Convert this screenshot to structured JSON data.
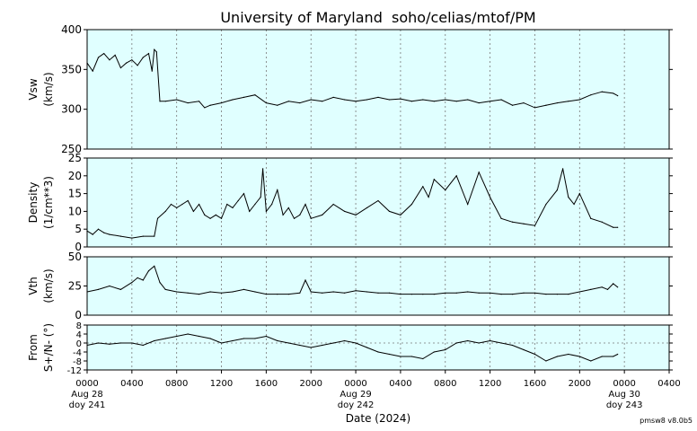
{
  "title": "University of Maryland  soho/celias/mtof/PM",
  "xlabel": "Date (2024)",
  "footer": "pmsw8 v8.0b5",
  "x_ticks": [
    "0000",
    "0400",
    "0800",
    "1200",
    "1600",
    "2000",
    "0000",
    "0400",
    "0800",
    "1200",
    "1600",
    "2000",
    "0000",
    "0400"
  ],
  "date_labels": [
    {
      "hour": 0,
      "line1": "Aug 28",
      "line2": "doy 241"
    },
    {
      "hour": 24,
      "line1": "Aug 29",
      "line2": "doy 242"
    },
    {
      "hour": 48,
      "line1": "Aug 30",
      "line2": "doy 243"
    }
  ],
  "colors": {
    "panel_bg": "#e0ffff",
    "trace": "#000000",
    "grid": "#777777"
  },
  "chart_data": [
    {
      "type": "line",
      "ylabel": "Vsw",
      "yunit": "(km/s)",
      "xlim": [
        0,
        52
      ],
      "ylim": [
        250,
        400
      ],
      "yticks": [
        250,
        300,
        350,
        400
      ],
      "series": [
        {
          "x": [
            0,
            0.5,
            1,
            1.5,
            2,
            2.5,
            3,
            3.5,
            4,
            4.5,
            5,
            5.5,
            5.8,
            6,
            6.2,
            6.5,
            7,
            8,
            9,
            10,
            10.5,
            11,
            12,
            13,
            14,
            15,
            16,
            17,
            18,
            19,
            20,
            21,
            22,
            23,
            24,
            25,
            26,
            27,
            28,
            29,
            30,
            31,
            32,
            33,
            34,
            35,
            36,
            37,
            38,
            39,
            40,
            41,
            42,
            43,
            44,
            45,
            46,
            47,
            47.4
          ],
          "y": [
            358,
            348,
            365,
            370,
            362,
            368,
            352,
            358,
            362,
            355,
            365,
            370,
            348,
            375,
            372,
            310,
            310,
            312,
            308,
            310,
            302,
            305,
            308,
            312,
            315,
            318,
            308,
            305,
            310,
            308,
            312,
            310,
            315,
            312,
            310,
            312,
            315,
            312,
            313,
            310,
            312,
            310,
            312,
            310,
            312,
            308,
            310,
            312,
            305,
            308,
            302,
            305,
            308,
            310,
            312,
            318,
            322,
            320,
            317
          ]
        }
      ]
    },
    {
      "type": "line",
      "ylabel": "Density",
      "yunit": "(1/cm**3)",
      "xlim": [
        0,
        52
      ],
      "ylim": [
        0,
        25
      ],
      "yticks": [
        0,
        5,
        10,
        15,
        20,
        25
      ],
      "series": [
        {
          "x": [
            0,
            0.5,
            1,
            1.5,
            2,
            3,
            4,
            5,
            6,
            6.3,
            7,
            7.5,
            8,
            8.5,
            9,
            9.5,
            10,
            10.5,
            11,
            11.5,
            12,
            12.5,
            13,
            13.5,
            14,
            14.5,
            15,
            15.5,
            15.7,
            16,
            16.5,
            17,
            17.5,
            18,
            18.5,
            19,
            19.5,
            20,
            21,
            22,
            23,
            24,
            25,
            26,
            27,
            28,
            29,
            30,
            30.5,
            31,
            32,
            33,
            34,
            35,
            36,
            37,
            38,
            39,
            40,
            41,
            42,
            42.5,
            43,
            43.5,
            44,
            45,
            46,
            47,
            47.4
          ],
          "y": [
            4.5,
            3.5,
            5,
            4,
            3.5,
            3,
            2.5,
            3,
            3,
            8,
            10,
            12,
            11,
            12,
            13,
            10,
            12,
            9,
            8,
            9,
            8,
            12,
            11,
            13,
            15,
            10,
            12,
            14,
            22,
            10,
            12,
            16,
            9,
            11,
            8,
            9,
            12,
            8,
            9,
            12,
            10,
            9,
            11,
            13,
            10,
            9,
            12,
            17,
            14,
            19,
            16,
            20,
            12,
            21,
            14,
            8,
            7,
            6.5,
            6,
            12,
            16,
            22,
            14,
            12,
            15,
            8,
            7,
            5.5,
            5.5
          ]
        }
      ]
    },
    {
      "type": "line",
      "ylabel": "Vth",
      "yunit": "(km/s)",
      "xlim": [
        0,
        52
      ],
      "ylim": [
        0,
        50
      ],
      "yticks": [
        0,
        25,
        50
      ],
      "series": [
        {
          "x": [
            0,
            1,
            2,
            3,
            4,
            4.5,
            5,
            5.5,
            6,
            6.5,
            7,
            8,
            9,
            10,
            11,
            12,
            13,
            14,
            15,
            16,
            17,
            18,
            19,
            19.5,
            20,
            21,
            22,
            23,
            24,
            25,
            26,
            27,
            28,
            29,
            30,
            31,
            32,
            33,
            34,
            35,
            36,
            37,
            38,
            39,
            40,
            41,
            42,
            43,
            44,
            45,
            46,
            46.5,
            47,
            47.4
          ],
          "y": [
            20,
            22,
            25,
            22,
            28,
            32,
            30,
            38,
            42,
            28,
            22,
            20,
            19,
            18,
            20,
            19,
            20,
            22,
            20,
            18,
            18,
            18,
            19,
            30,
            20,
            19,
            20,
            19,
            21,
            20,
            19,
            19,
            18,
            18,
            18,
            18,
            19,
            19,
            20,
            19,
            19,
            18,
            18,
            19,
            19,
            18,
            18,
            18,
            20,
            22,
            24,
            22,
            27,
            24
          ]
        }
      ]
    },
    {
      "type": "line",
      "ylabel": "From",
      "yunit": "S+/N- (°)",
      "xlim": [
        0,
        52
      ],
      "ylim": [
        -12,
        8
      ],
      "yticks": [
        -12,
        -8,
        -4,
        0,
        4,
        8
      ],
      "series": [
        {
          "x": [
            0,
            1,
            2,
            3,
            4,
            5,
            6,
            7,
            8,
            9,
            10,
            11,
            12,
            13,
            14,
            15,
            16,
            17,
            18,
            19,
            20,
            21,
            22,
            23,
            24,
            25,
            26,
            27,
            28,
            29,
            30,
            31,
            32,
            33,
            34,
            35,
            36,
            37,
            38,
            39,
            40,
            41,
            42,
            43,
            44,
            45,
            46,
            47,
            47.4
          ],
          "y": [
            -1,
            0,
            -0.5,
            0,
            0,
            -1,
            1,
            2,
            3,
            4,
            3,
            2,
            0,
            1,
            2,
            2,
            3,
            1,
            0,
            -1,
            -2,
            -1,
            0,
            1,
            0,
            -2,
            -4,
            -5,
            -6,
            -6,
            -7,
            -4,
            -3,
            0,
            1,
            0,
            1,
            0,
            -1,
            -3,
            -5,
            -8,
            -6,
            -5,
            -6,
            -8,
            -6,
            -6,
            -5
          ]
        }
      ]
    }
  ]
}
